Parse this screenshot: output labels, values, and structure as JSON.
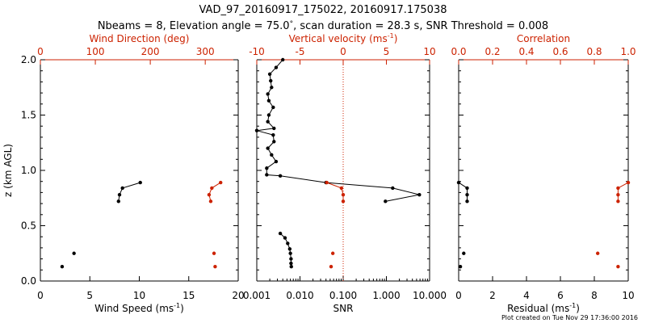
{
  "title_line1": "VAD_97_20160917_175022, 20160917.175038",
  "title_line2_parts": [
    "Nbeams = 8, Elevation angle = 75.0",
    "°",
    ", scan duration = 28.3 s, SNR Threshold = 0.008"
  ],
  "footer": "Plot created on Tue Nov 29 17:36:00 2016",
  "colors": {
    "black": "#000000",
    "red": "#cc2200",
    "dotted": "#cc2200"
  },
  "y_axis": {
    "label": "z (km AGL)",
    "range": [
      0.0,
      2.0
    ],
    "ticks": [
      0.0,
      0.5,
      1.0,
      1.5,
      2.0
    ],
    "tick_labels": [
      "0.0",
      "0.5",
      "1.0",
      "1.5",
      "2.0"
    ]
  },
  "chart_data": [
    {
      "type": "scatter",
      "bottom_axis": {
        "label_parts": [
          "Wind Speed (ms",
          "-1",
          ")"
        ],
        "range": [
          0,
          20
        ],
        "tick_labels": [
          "0",
          "5",
          "10",
          "15",
          "20"
        ],
        "ticks": [
          0,
          5,
          10,
          15,
          20
        ]
      },
      "top_axis": {
        "label": "Wind Direction (deg)",
        "range": [
          0,
          360
        ],
        "tick_labels": [
          "0",
          "100",
          "200",
          "300"
        ],
        "ticks": [
          0,
          100,
          200,
          300
        ]
      },
      "series": [
        {
          "axis": "bottom",
          "color": "black",
          "segments": [
            [
              [
                10.1,
                0.89
              ],
              [
                8.3,
                0.84
              ],
              [
                8.0,
                0.78
              ],
              [
                7.9,
                0.72
              ]
            ],
            [
              [
                3.4,
                0.25
              ]
            ],
            [
              [
                2.2,
                0.13
              ]
            ]
          ]
        },
        {
          "axis": "top",
          "color": "red",
          "segments": [
            [
              [
                328,
                0.89
              ],
              [
                312,
                0.84
              ],
              [
                307,
                0.78
              ],
              [
                310,
                0.72
              ]
            ],
            [
              [
                316,
                0.25
              ]
            ],
            [
              [
                318,
                0.13
              ]
            ]
          ]
        }
      ]
    },
    {
      "type": "line",
      "bottom_axis": {
        "label": "SNR",
        "scale": "log",
        "range": [
          0.001,
          10
        ],
        "tick_labels": [
          "0.001",
          "0.010",
          "0.100",
          "1.000",
          "10.000"
        ],
        "ticks": [
          0.001,
          0.01,
          0.1,
          1,
          10
        ]
      },
      "top_axis": {
        "label_parts": [
          "Vertical velocity (ms",
          "-1",
          ")"
        ],
        "range": [
          -10,
          10
        ],
        "tick_labels": [
          "-10",
          "-5",
          "0",
          "5",
          "10"
        ],
        "ticks": [
          -10,
          -5,
          0,
          5,
          10
        ]
      },
      "reference_line": {
        "axis": "top",
        "value": 0,
        "style": "dotted",
        "color": "dotted"
      },
      "series": [
        {
          "axis": "bottom",
          "color": "black",
          "segments": [
            [
              [
                0.004,
                2.0
              ],
              [
                0.0028,
                1.93
              ],
              [
                0.002,
                1.87
              ],
              [
                0.0021,
                1.81
              ],
              [
                0.0022,
                1.75
              ],
              [
                0.0018,
                1.69
              ],
              [
                0.0019,
                1.63
              ],
              [
                0.0024,
                1.57
              ],
              [
                0.0019,
                1.5
              ],
              [
                0.0018,
                1.44
              ],
              [
                0.0025,
                1.38
              ],
              [
                0.001,
                1.36
              ],
              [
                0.0024,
                1.32
              ],
              [
                0.0025,
                1.26
              ],
              [
                0.0018,
                1.2
              ],
              [
                0.0022,
                1.14
              ],
              [
                0.0028,
                1.08
              ],
              [
                0.0017,
                1.02
              ],
              [
                0.0017,
                0.96
              ],
              [
                0.0035,
                0.95
              ],
              [
                0.04,
                0.89
              ],
              [
                1.4,
                0.84
              ],
              [
                5.8,
                0.78
              ],
              [
                0.95,
                0.72
              ]
            ],
            [
              [
                0.0035,
                0.43
              ],
              [
                0.0045,
                0.39
              ],
              [
                0.0052,
                0.34
              ],
              [
                0.0058,
                0.29
              ],
              [
                0.006,
                0.25
              ],
              [
                0.0062,
                0.2
              ],
              [
                0.0062,
                0.16
              ],
              [
                0.0063,
                0.13
              ]
            ]
          ]
        },
        {
          "axis": "top",
          "color": "red",
          "segments": [
            [
              [
                -1.9,
                0.89
              ],
              [
                -0.2,
                0.84
              ],
              [
                0.0,
                0.78
              ],
              [
                0.0,
                0.72
              ]
            ],
            [
              [
                -1.2,
                0.25
              ]
            ],
            [
              [
                -1.4,
                0.13
              ]
            ]
          ]
        }
      ]
    },
    {
      "type": "scatter",
      "bottom_axis": {
        "label_parts": [
          "Residual (ms",
          "-1",
          ")"
        ],
        "range": [
          0,
          10
        ],
        "tick_labels": [
          "0",
          "2",
          "4",
          "6",
          "8",
          "10"
        ],
        "ticks": [
          0,
          2,
          4,
          6,
          8,
          10
        ]
      },
      "top_axis": {
        "label": "Correlation",
        "range": [
          0.0,
          1.0
        ],
        "tick_labels": [
          "0.0",
          "0.2",
          "0.4",
          "0.6",
          "0.8",
          "1.0"
        ],
        "ticks": [
          0,
          0.2,
          0.4,
          0.6,
          0.8,
          1.0
        ]
      },
      "series": [
        {
          "axis": "bottom",
          "color": "black",
          "segments": [
            [
              [
                0.0,
                0.89
              ],
              [
                0.5,
                0.84
              ],
              [
                0.5,
                0.78
              ],
              [
                0.5,
                0.72
              ]
            ],
            [
              [
                0.3,
                0.25
              ]
            ],
            [
              [
                0.1,
                0.13
              ]
            ]
          ]
        },
        {
          "axis": "top",
          "color": "red",
          "segments": [
            [
              [
                1.0,
                0.89
              ],
              [
                0.94,
                0.84
              ],
              [
                0.94,
                0.78
              ],
              [
                0.94,
                0.72
              ]
            ],
            [
              [
                0.82,
                0.25
              ]
            ],
            [
              [
                0.94,
                0.13
              ]
            ]
          ]
        }
      ]
    }
  ]
}
